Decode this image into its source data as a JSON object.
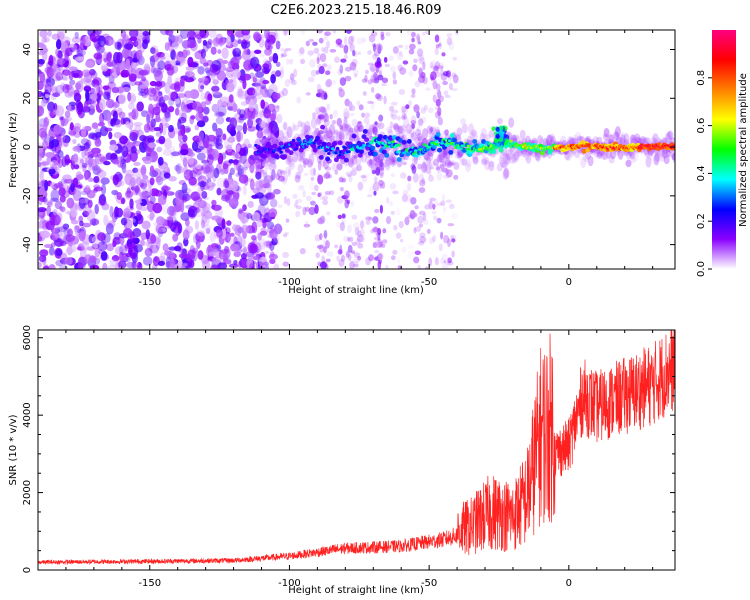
{
  "title": "C2E6.2023.215.18.46.R09",
  "chart_data": [
    {
      "type": "heatmap",
      "name": "spectrogram",
      "xlabel": "Height of straight line (km)",
      "ylabel": "Frequency (Hz)",
      "xlim": [
        -190,
        38
      ],
      "ylim": [
        -50,
        48
      ],
      "xticks": [
        -150,
        -100,
        -50,
        0
      ],
      "yticks": [
        -40,
        -20,
        0,
        20,
        40
      ],
      "colorbar": {
        "label": "Normalized spectral amplitude",
        "range": [
          0,
          1
        ],
        "ticks": [
          0.0,
          0.2,
          0.4,
          0.6,
          0.8
        ],
        "colors": [
          "#ffffff",
          "#8a00ff",
          "#0000ff",
          "#00ffff",
          "#00ff00",
          "#ffff00",
          "#ff8000",
          "#ff0000",
          "#ff0080"
        ]
      },
      "features": {
        "scatter_region_x": [
          -190,
          -110
        ],
        "ridge_start_x": -112,
        "ridge_frequency": 0,
        "ridge_peak_x": -24,
        "ridge_peak_frequency": 8
      }
    },
    {
      "type": "line",
      "name": "snr",
      "xlabel": "Height of straight line (km)",
      "ylabel": "SNR (10 * v/v)",
      "xlim": [
        -190,
        38
      ],
      "ylim": [
        0,
        6200
      ],
      "xticks": [
        -150,
        -100,
        -50,
        0
      ],
      "yticks": [
        0,
        2000,
        4000,
        6000
      ],
      "color": "#ff2020",
      "trend": {
        "x": [
          -190,
          -150,
          -120,
          -100,
          -80,
          -60,
          -45,
          -35,
          -28,
          -20,
          -15,
          -10,
          -5,
          0,
          5,
          10,
          20,
          30,
          38
        ],
        "y": [
          180,
          200,
          220,
          320,
          500,
          550,
          700,
          900,
          1200,
          1100,
          1500,
          2800,
          3000,
          3200,
          4500,
          4200,
          4500,
          4800,
          5300
        ]
      }
    }
  ]
}
